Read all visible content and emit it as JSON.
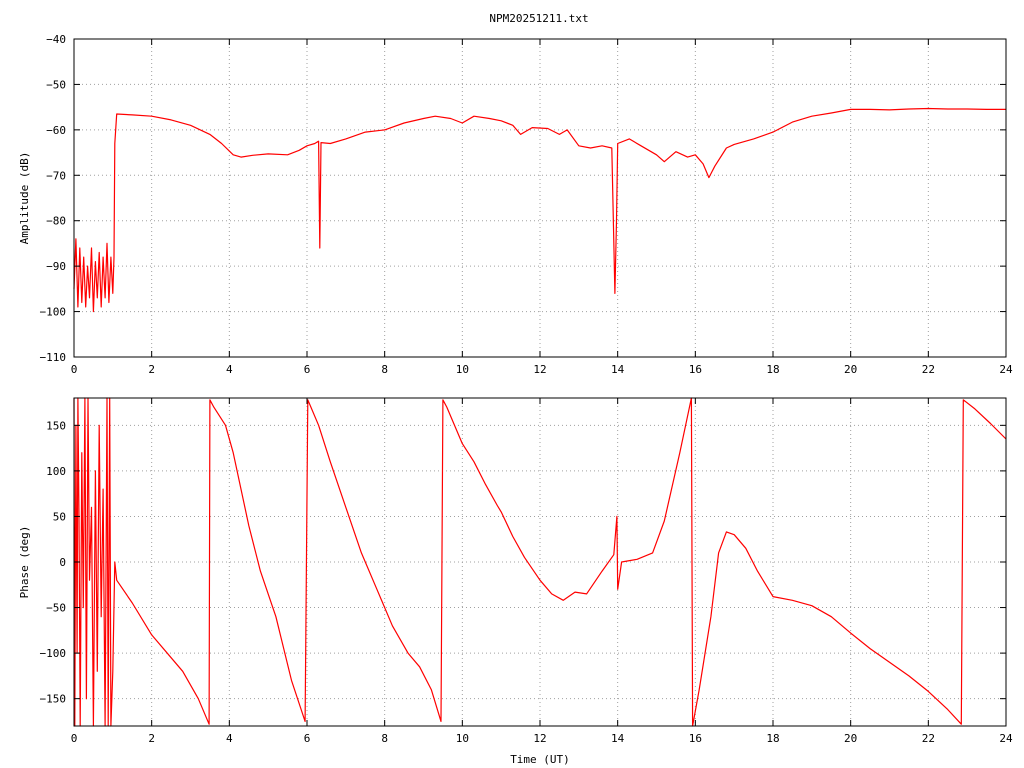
{
  "title": "NPM20251211.txt",
  "colors": {
    "series": "#ff0000",
    "grid": "#a0a0a0",
    "axis": "#000000"
  },
  "chart_data": [
    {
      "type": "line",
      "ylabel": "Amplitude (dB)",
      "xlabel": "",
      "xlim": [
        0,
        24
      ],
      "ylim": [
        -110,
        -40
      ],
      "xticks": [
        0,
        2,
        4,
        6,
        8,
        10,
        12,
        14,
        16,
        18,
        20,
        22,
        24
      ],
      "yticks": [
        -110,
        -100,
        -90,
        -80,
        -70,
        -60,
        -50,
        -40
      ],
      "grid": true,
      "series": [
        {
          "values": [
            [
              0,
              -95
            ],
            [
              0.05,
              -84
            ],
            [
              0.1,
              -99
            ],
            [
              0.15,
              -86
            ],
            [
              0.2,
              -98
            ],
            [
              0.25,
              -88
            ],
            [
              0.3,
              -99
            ],
            [
              0.35,
              -90
            ],
            [
              0.4,
              -97
            ],
            [
              0.45,
              -86
            ],
            [
              0.5,
              -100
            ],
            [
              0.55,
              -89
            ],
            [
              0.6,
              -97
            ],
            [
              0.65,
              -87
            ],
            [
              0.7,
              -99
            ],
            [
              0.75,
              -88
            ],
            [
              0.8,
              -97
            ],
            [
              0.85,
              -85
            ],
            [
              0.9,
              -98
            ],
            [
              0.95,
              -88
            ],
            [
              1.0,
              -96
            ],
            [
              1.03,
              -88
            ],
            [
              1.05,
              -63
            ],
            [
              1.1,
              -56.5
            ],
            [
              1.5,
              -56.7
            ],
            [
              2,
              -57
            ],
            [
              2.5,
              -57.8
            ],
            [
              3,
              -59
            ],
            [
              3.5,
              -61
            ],
            [
              3.8,
              -63
            ],
            [
              4.1,
              -65.5
            ],
            [
              4.3,
              -66
            ],
            [
              4.6,
              -65.6
            ],
            [
              5,
              -65.3
            ],
            [
              5.5,
              -65.5
            ],
            [
              5.8,
              -64.5
            ],
            [
              6,
              -63.5
            ],
            [
              6.2,
              -63
            ],
            [
              6.3,
              -62.5
            ],
            [
              6.33,
              -86
            ],
            [
              6.36,
              -62.8
            ],
            [
              6.6,
              -63
            ],
            [
              7,
              -62
            ],
            [
              7.5,
              -60.5
            ],
            [
              8,
              -60
            ],
            [
              8.5,
              -58.5
            ],
            [
              9,
              -57.5
            ],
            [
              9.3,
              -57
            ],
            [
              9.7,
              -57.5
            ],
            [
              10,
              -58.5
            ],
            [
              10.3,
              -57
            ],
            [
              10.7,
              -57.5
            ],
            [
              11,
              -58
            ],
            [
              11.3,
              -59
            ],
            [
              11.5,
              -61
            ],
            [
              11.8,
              -59.5
            ],
            [
              12.2,
              -59.7
            ],
            [
              12.5,
              -61
            ],
            [
              12.7,
              -60
            ],
            [
              13,
              -63.5
            ],
            [
              13.3,
              -64
            ],
            [
              13.6,
              -63.5
            ],
            [
              13.85,
              -64
            ],
            [
              13.93,
              -96
            ],
            [
              13.97,
              -80
            ],
            [
              14,
              -63
            ],
            [
              14.3,
              -62
            ],
            [
              14.6,
              -63.5
            ],
            [
              15,
              -65.5
            ],
            [
              15.2,
              -67
            ],
            [
              15.5,
              -64.8
            ],
            [
              15.8,
              -66
            ],
            [
              16,
              -65.5
            ],
            [
              16.2,
              -67.5
            ],
            [
              16.35,
              -70.5
            ],
            [
              16.5,
              -68
            ],
            [
              16.8,
              -64
            ],
            [
              17,
              -63.2
            ],
            [
              17.5,
              -62
            ],
            [
              18,
              -60.5
            ],
            [
              18.5,
              -58.3
            ],
            [
              19,
              -57
            ],
            [
              19.5,
              -56.3
            ],
            [
              20,
              -55.5
            ],
            [
              20.5,
              -55.5
            ],
            [
              21,
              -55.6
            ],
            [
              21.5,
              -55.4
            ],
            [
              22,
              -55.3
            ],
            [
              22.5,
              -55.4
            ],
            [
              23,
              -55.4
            ],
            [
              23.5,
              -55.5
            ],
            [
              24,
              -55.5
            ]
          ]
        }
      ]
    },
    {
      "type": "line",
      "ylabel": "Phase (deg)",
      "xlabel": "Time (UT)",
      "xlim": [
        0,
        24
      ],
      "ylim": [
        -180,
        180
      ],
      "xticks": [
        0,
        2,
        4,
        6,
        8,
        10,
        12,
        14,
        16,
        18,
        20,
        22,
        24
      ],
      "yticks": [
        -150,
        -100,
        -50,
        0,
        50,
        100,
        150
      ],
      "grid": true,
      "series": [
        {
          "values": [
            [
              0,
              180
            ],
            [
              0.02,
              -180
            ],
            [
              0.05,
              150
            ],
            [
              0.08,
              -100
            ],
            [
              0.1,
              180
            ],
            [
              0.13,
              50
            ],
            [
              0.16,
              -180
            ],
            [
              0.2,
              120
            ],
            [
              0.24,
              -50
            ],
            [
              0.28,
              180
            ],
            [
              0.32,
              -150
            ],
            [
              0.36,
              180
            ],
            [
              0.4,
              -20
            ],
            [
              0.45,
              60
            ],
            [
              0.5,
              -180
            ],
            [
              0.55,
              100
            ],
            [
              0.6,
              -120
            ],
            [
              0.65,
              150
            ],
            [
              0.7,
              -60
            ],
            [
              0.75,
              80
            ],
            [
              0.8,
              -180
            ],
            [
              0.85,
              180
            ],
            [
              0.88,
              -180
            ],
            [
              0.92,
              180
            ],
            [
              0.95,
              -180
            ],
            [
              1.0,
              -120
            ],
            [
              1.05,
              0
            ],
            [
              1.1,
              -20
            ],
            [
              1.5,
              -45
            ],
            [
              2,
              -80
            ],
            [
              2.5,
              -105
            ],
            [
              2.8,
              -120
            ],
            [
              3.2,
              -150
            ],
            [
              3.48,
              -178
            ],
            [
              3.5,
              178
            ],
            [
              3.6,
              170
            ],
            [
              3.9,
              150
            ],
            [
              4.1,
              120
            ],
            [
              4.5,
              40
            ],
            [
              4.8,
              -10
            ],
            [
              5.2,
              -60
            ],
            [
              5.6,
              -130
            ],
            [
              5.95,
              -175
            ],
            [
              6.02,
              178
            ],
            [
              6.1,
              170
            ],
            [
              6.3,
              150
            ],
            [
              6.6,
              110
            ],
            [
              7,
              60
            ],
            [
              7.4,
              10
            ],
            [
              7.8,
              -30
            ],
            [
              8.2,
              -70
            ],
            [
              8.6,
              -100
            ],
            [
              8.9,
              -115
            ],
            [
              9.2,
              -140
            ],
            [
              9.45,
              -175
            ],
            [
              9.5,
              178
            ],
            [
              9.6,
              170
            ],
            [
              10,
              130
            ],
            [
              10.3,
              110
            ],
            [
              10.6,
              85
            ],
            [
              10.9,
              62
            ],
            [
              11,
              55
            ],
            [
              11.3,
              28
            ],
            [
              11.6,
              5
            ],
            [
              12,
              -20
            ],
            [
              12.3,
              -35
            ],
            [
              12.6,
              -42
            ],
            [
              12.9,
              -33
            ],
            [
              13.2,
              -35
            ],
            [
              13.6,
              -10
            ],
            [
              13.9,
              8
            ],
            [
              13.98,
              50
            ],
            [
              14.0,
              -30
            ],
            [
              14.1,
              0
            ],
            [
              14.5,
              3
            ],
            [
              14.9,
              10
            ],
            [
              15.2,
              45
            ],
            [
              15.6,
              120
            ],
            [
              15.9,
              180
            ],
            [
              15.93,
              -180
            ],
            [
              16.1,
              -140
            ],
            [
              16.4,
              -60
            ],
            [
              16.6,
              10
            ],
            [
              16.8,
              33
            ],
            [
              17,
              30
            ],
            [
              17.3,
              15
            ],
            [
              17.6,
              -10
            ],
            [
              18,
              -38
            ],
            [
              18.5,
              -42
            ],
            [
              19,
              -48
            ],
            [
              19.5,
              -60
            ],
            [
              20,
              -78
            ],
            [
              20.5,
              -95
            ],
            [
              21,
              -110
            ],
            [
              21.5,
              -125
            ],
            [
              22,
              -142
            ],
            [
              22.5,
              -162
            ],
            [
              22.85,
              -178
            ],
            [
              22.9,
              178
            ],
            [
              23.2,
              168
            ],
            [
              23.6,
              152
            ],
            [
              24,
              135
            ]
          ]
        }
      ]
    }
  ]
}
